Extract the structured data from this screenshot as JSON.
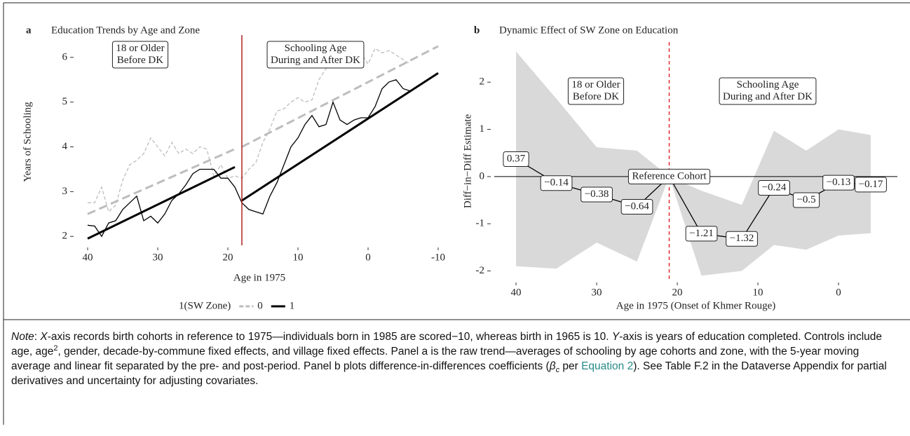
{
  "chart_data": [
    {
      "type": "line",
      "label": "a",
      "title": "Education Trends by Age and Zone",
      "ylabel": "Years of Schooling",
      "xlabel": "Age in 1975",
      "xlim": [
        41.5,
        -10.5
      ],
      "xticks": [
        40,
        30,
        20,
        10,
        0,
        -10
      ],
      "ylim": [
        1.8,
        6.42
      ],
      "yticks": [
        2,
        3,
        4,
        5,
        6
      ],
      "vline": 18,
      "vline_color": "#b22222",
      "x": [
        40,
        39,
        38,
        37,
        36,
        35,
        34,
        33,
        32,
        31,
        30,
        29,
        28,
        27,
        26,
        25,
        24,
        23,
        22,
        21,
        20,
        19,
        18,
        17,
        16,
        15,
        14,
        13,
        12,
        11,
        10,
        9,
        8,
        7,
        6,
        5,
        4,
        3,
        2,
        1,
        0,
        -1,
        -2,
        -3,
        -4,
        -5,
        -6
      ],
      "fit_x_pre": [
        40,
        19
      ],
      "fit_x_post": [
        18,
        -10
      ],
      "legend_title": "1(SW Zone)",
      "series": [
        {
          "name": "0",
          "color": "#bdbdbd",
          "dashed": true,
          "values": [
            2.75,
            2.75,
            3.1,
            2.55,
            2.7,
            3.25,
            3.6,
            3.7,
            3.85,
            4.2,
            4.0,
            3.8,
            4.1,
            3.85,
            3.95,
            3.85,
            4.0,
            3.95,
            3.35,
            3.6,
            3.3,
            3.35,
            3.3,
            3.5,
            3.65,
            4.1,
            4.4,
            4.8,
            4.85,
            5.0,
            5.1,
            5.0,
            5.05,
            5.5,
            5.75,
            5.85,
            6.05,
            5.85,
            6.05,
            6.1,
            5.85,
            6.2,
            6.1,
            6.15,
            6.05,
            5.95,
            5.85
          ],
          "fit_pre": [
            2.5,
            3.95
          ],
          "fit_post": [
            4.0,
            6.25
          ]
        },
        {
          "name": "1",
          "color": "#000000",
          "dashed": false,
          "values": [
            2.25,
            2.23,
            2.0,
            2.3,
            2.35,
            2.6,
            2.75,
            2.9,
            2.35,
            2.45,
            2.3,
            2.5,
            2.8,
            2.95,
            3.15,
            3.4,
            3.5,
            3.5,
            3.5,
            3.3,
            3.3,
            3.1,
            2.75,
            2.6,
            2.55,
            2.5,
            2.9,
            3.2,
            3.6,
            4.0,
            4.2,
            4.5,
            4.7,
            4.45,
            4.5,
            5.0,
            4.6,
            4.5,
            4.6,
            4.65,
            4.65,
            4.9,
            5.3,
            5.45,
            5.5,
            5.3,
            5.25
          ],
          "fit_pre": [
            1.95,
            3.55
          ],
          "fit_post": [
            2.8,
            5.65
          ]
        }
      ],
      "annotations": [
        {
          "lines": [
            "18 or Older",
            "Before DK"
          ]
        },
        {
          "lines": [
            "Schooling Age",
            "During and After DK"
          ]
        }
      ]
    },
    {
      "type": "coef",
      "label": "b",
      "title": "Dynamic Effect of SW Zone on Education",
      "ylabel": "Diff−in−Diff Estimate",
      "xlabel": "Age in 1975 (Onset of Khmer Rouge)",
      "xlim": [
        42.7,
        -7.3
      ],
      "xticks": [
        40,
        30,
        20,
        10,
        0
      ],
      "ylim": [
        -2.2,
        2.85
      ],
      "yticks": [
        -2,
        -1,
        0,
        1,
        2
      ],
      "hline": 0,
      "vline": 21,
      "vline_color": "#e03030",
      "band_color": "#d9d9d9",
      "x": [
        40,
        35,
        30,
        25,
        21,
        17,
        12,
        8,
        4,
        0,
        -4
      ],
      "values": [
        0.37,
        -0.14,
        -0.38,
        -0.64,
        0,
        -1.21,
        -1.32,
        -0.24,
        -0.5,
        -0.13,
        -0.17
      ],
      "value_labels": [
        "0.37",
        "−0.14",
        "−0.38",
        "−0.64",
        null,
        "−1.21",
        "−1.32",
        "−0.24",
        "−0.5",
        "−0.13",
        "−0.17"
      ],
      "upper": [
        2.65,
        1.65,
        0.62,
        0.55,
        0,
        -0.3,
        -0.6,
        0.97,
        0.55,
        1.0,
        0.88
      ],
      "lower": [
        -1.9,
        -1.95,
        -1.4,
        -1.8,
        0,
        -2.1,
        -2.0,
        -1.45,
        -1.55,
        -1.25,
        -1.2
      ],
      "reference_label": "Reference Cohort",
      "annotations": [
        {
          "lines": [
            "18 or Older",
            "Before DK"
          ]
        },
        {
          "lines": [
            "Schooling Age",
            "During and After DK"
          ]
        }
      ]
    }
  ],
  "note": [
    {
      "t": "Note",
      "s": "i"
    },
    {
      "t": ": "
    },
    {
      "t": "X",
      "s": "i"
    },
    {
      "t": "-axis records birth cohorts in reference to 1975—individuals born in 1985 are scored−10, whereas birth in 1965 is 10. "
    },
    {
      "t": "Y",
      "s": "i"
    },
    {
      "t": "-axis is years of education completed. Controls include age, age"
    },
    {
      "t": "2",
      "s": "sup"
    },
    {
      "t": ", gender, decade-by-commune fixed effects, and village fixed effects. Panel a is the raw trend—averages of schooling by age cohorts and zone, with the 5-year moving average and linear fit separated by the pre- and post-period. Panel b plots difference-in-differences coefficients ("
    },
    {
      "t": "β",
      "s": "i"
    },
    {
      "t": "c",
      "s": "sub"
    },
    {
      "t": " per "
    },
    {
      "t": "Equation 2",
      "s": "link"
    },
    {
      "t": "). See Table F.2 in the Dataverse Appendix for partial derivatives and uncertainty for adjusting covariates."
    }
  ]
}
